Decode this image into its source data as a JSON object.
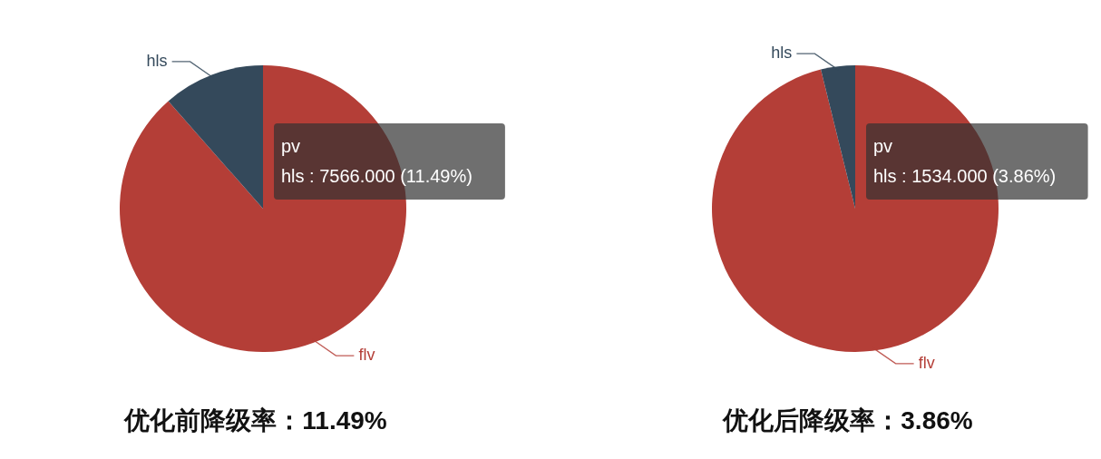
{
  "chart_data": [
    {
      "type": "pie",
      "title": "优化前降级率：11.49%",
      "categories": [
        "flv",
        "hls"
      ],
      "values": [
        88.51,
        11.49
      ],
      "colors": [
        "#b43e37",
        "#34495b"
      ],
      "annotations": [
        "pv",
        "hls : 7566.000 (11.49%)"
      ]
    },
    {
      "type": "pie",
      "title": "优化后降级率：3.86%",
      "categories": [
        "flv",
        "hls"
      ],
      "values": [
        96.14,
        3.86
      ],
      "colors": [
        "#b43e37",
        "#34495b"
      ],
      "annotations": [
        "pv",
        "hls : 1534.000 (3.86%)"
      ]
    }
  ]
}
